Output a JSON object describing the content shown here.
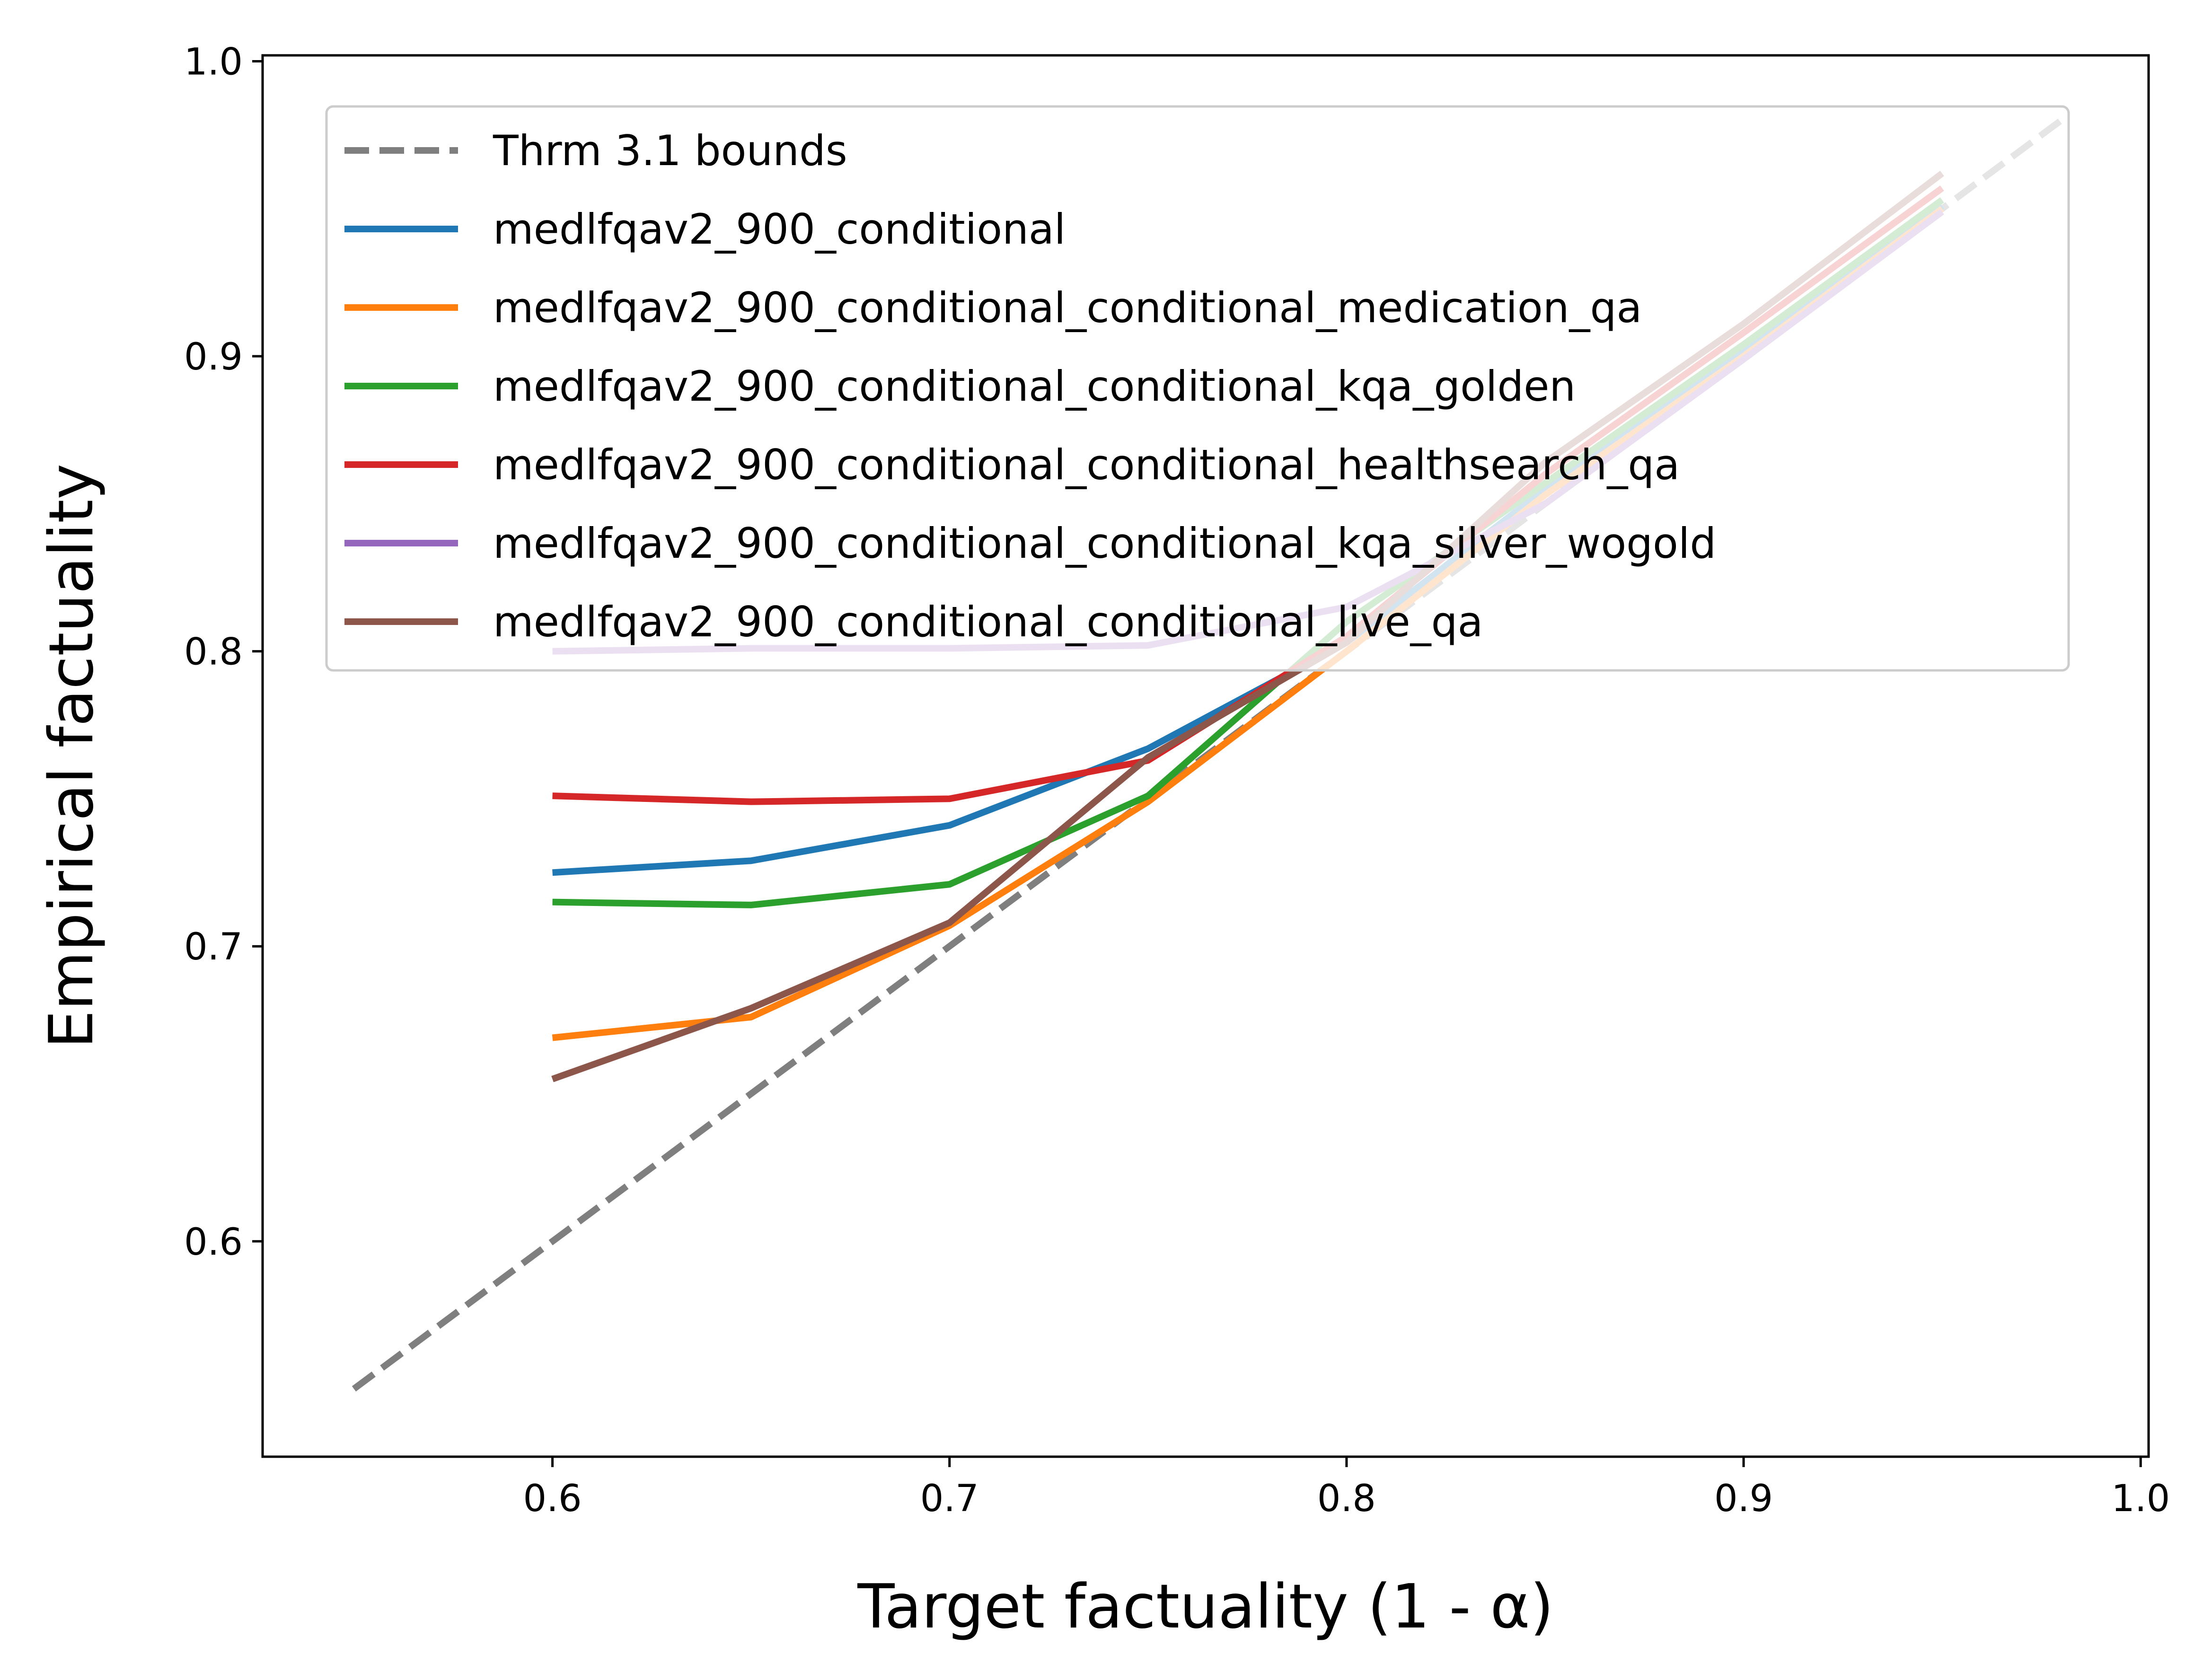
{
  "chart_data": {
    "type": "line",
    "title": "",
    "xlabel": "Target factuality (1 - α)",
    "ylabel": "Empirical factuality",
    "xlim": [
      0.527,
      1.002
    ],
    "ylim": [
      0.527,
      1.002
    ],
    "xticks": [
      "0.6",
      "0.7",
      "0.8",
      "0.9",
      "1.0"
    ],
    "yticks": [
      "0.6",
      "0.7",
      "0.8",
      "0.9",
      "1.0"
    ],
    "grid": false,
    "legend_position": "upper-left",
    "bound": {
      "name": "Thrm 3.1 bounds",
      "color": "#7f7f7f",
      "style": "dashed",
      "x": [
        0.55,
        0.98
      ],
      "y": [
        0.55,
        0.98
      ]
    },
    "x": [
      0.6,
      0.65,
      0.7,
      0.75,
      0.8,
      0.85,
      0.9,
      0.95
    ],
    "series": [
      {
        "name": "medlfqav2_900_conditional",
        "color": "#1f77b4",
        "values": [
          0.725,
          0.729,
          0.741,
          0.767,
          0.803,
          0.855,
          0.902,
          0.951
        ]
      },
      {
        "name": "medlfqav2_900_conditional_conditional_medication_qa",
        "color": "#ff7f0e",
        "values": [
          0.669,
          0.676,
          0.707,
          0.749,
          0.8,
          0.853,
          0.9,
          0.95
        ]
      },
      {
        "name": "medlfqav2_900_conditional_conditional_kqa_golden",
        "color": "#2ca02c",
        "values": [
          0.715,
          0.714,
          0.721,
          0.751,
          0.81,
          0.857,
          0.904,
          0.953
        ]
      },
      {
        "name": "medlfqav2_900_conditional_conditional_healthsearch_qa",
        "color": "#d62728",
        "values": [
          0.751,
          0.749,
          0.75,
          0.763,
          0.805,
          0.86,
          0.908,
          0.957
        ]
      },
      {
        "name": "medlfqav2_900_conditional_conditional_kqa_silver_wogold",
        "color": "#9467bd",
        "values": [
          0.8,
          0.801,
          0.801,
          0.802,
          0.815,
          0.85,
          0.899,
          0.949
        ]
      },
      {
        "name": "medlfqav2_900_conditional_conditional_live_qa",
        "color": "#8c564b",
        "values": [
          0.655,
          0.679,
          0.708,
          0.764,
          0.803,
          0.864,
          0.911,
          0.962
        ]
      }
    ]
  }
}
